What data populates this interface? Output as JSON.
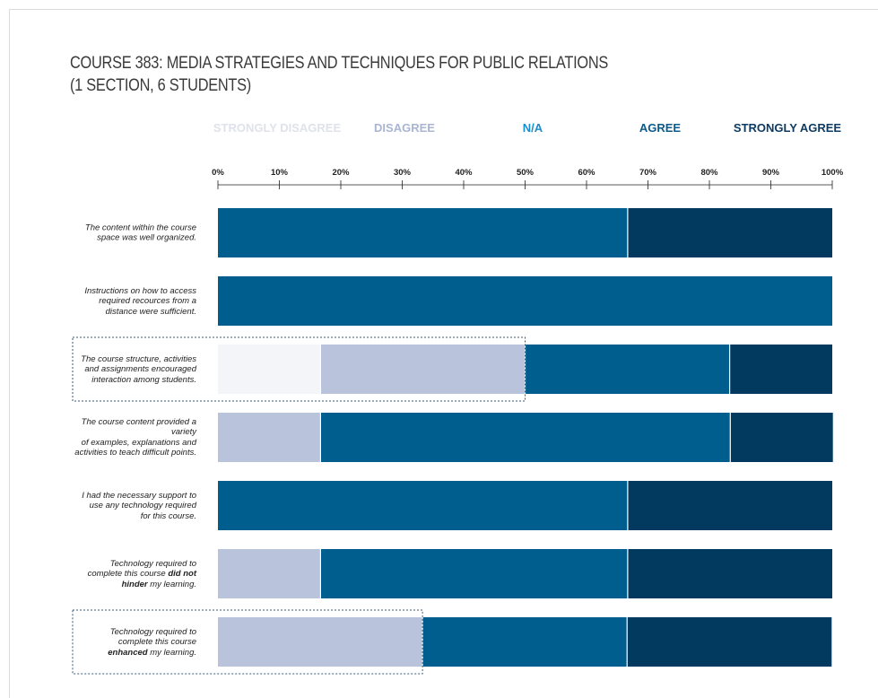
{
  "chart_data": {
    "type": "bar",
    "orientation": "horizontal",
    "stacked": true,
    "title": "COURSE 383: MEDIA STRATEGIES AND TECHNIQUES FOR PUBLIC RELATIONS",
    "subtitle": "(1 SECTION, 6 STUDENTS)",
    "xlim": [
      0,
      100
    ],
    "x_ticks": [
      "0%",
      "10%",
      "20%",
      "30%",
      "40%",
      "50%",
      "60%",
      "70%",
      "80%",
      "90%",
      "100%"
    ],
    "legend_position": "top",
    "series": [
      {
        "name": "STRONGLY DISAGREE",
        "color": "#f4f5f8",
        "label_color": "#dfe2ea",
        "values": [
          0,
          0,
          16.7,
          0,
          0,
          0,
          0
        ]
      },
      {
        "name": "DISAGREE",
        "color": "#bac3dc",
        "label_color": "#aab5d4",
        "values": [
          0,
          0,
          33.3,
          16.7,
          0,
          16.7,
          33.3
        ]
      },
      {
        "name": "N/A",
        "color": "#005e8e",
        "label_color": "#1a8fd0",
        "values": [
          0,
          0,
          0,
          0,
          0,
          0,
          0
        ]
      },
      {
        "name": "AGREE",
        "color": "#005e8e",
        "label_color": "#0b5a8a",
        "values": [
          66.7,
          100,
          33.3,
          66.7,
          66.7,
          50,
          33.3
        ]
      },
      {
        "name": "STRONGLY AGREE",
        "color": "#013a5e",
        "label_color": "#0d3b63",
        "values": [
          33.3,
          0,
          16.7,
          16.7,
          33.3,
          33.3,
          33.3
        ]
      }
    ],
    "categories": [
      {
        "lines": [
          [
            {
              "t": "The content within the course"
            }
          ],
          [
            {
              "t": "space was well organized."
            }
          ]
        ],
        "highlight": false
      },
      {
        "lines": [
          [
            {
              "t": "Instructions on how to access"
            }
          ],
          [
            {
              "t": "required recources from a"
            }
          ],
          [
            {
              "t": "distance were sufficient."
            }
          ]
        ],
        "highlight": false
      },
      {
        "lines": [
          [
            {
              "t": "The course structure, activities"
            }
          ],
          [
            {
              "t": "and assignments encouraged"
            }
          ],
          [
            {
              "t": "interaction among students."
            }
          ]
        ],
        "highlight": true
      },
      {
        "lines": [
          [
            {
              "t": "The course content provided a variety"
            }
          ],
          [
            {
              "t": "of examples, explanations and"
            }
          ],
          [
            {
              "t": "activities to teach difficult points."
            }
          ]
        ],
        "highlight": false
      },
      {
        "lines": [
          [
            {
              "t": "I had the necessary support to"
            }
          ],
          [
            {
              "t": "use any technology required"
            }
          ],
          [
            {
              "t": "for this course."
            }
          ]
        ],
        "highlight": false
      },
      {
        "lines": [
          [
            {
              "t": "Technology required to"
            }
          ],
          [
            {
              "t": "complete this course "
            },
            {
              "t": "did not",
              "b": true
            }
          ],
          [
            {
              "t": "hinder",
              "b": true
            },
            {
              "t": " my learning."
            }
          ]
        ],
        "highlight": false
      },
      {
        "lines": [
          [
            {
              "t": "Technology required to"
            }
          ],
          [
            {
              "t": "complete this course"
            }
          ],
          [
            {
              "t": "enhanced",
              "b": true
            },
            {
              "t": " my learning."
            }
          ]
        ],
        "highlight": true
      }
    ]
  }
}
